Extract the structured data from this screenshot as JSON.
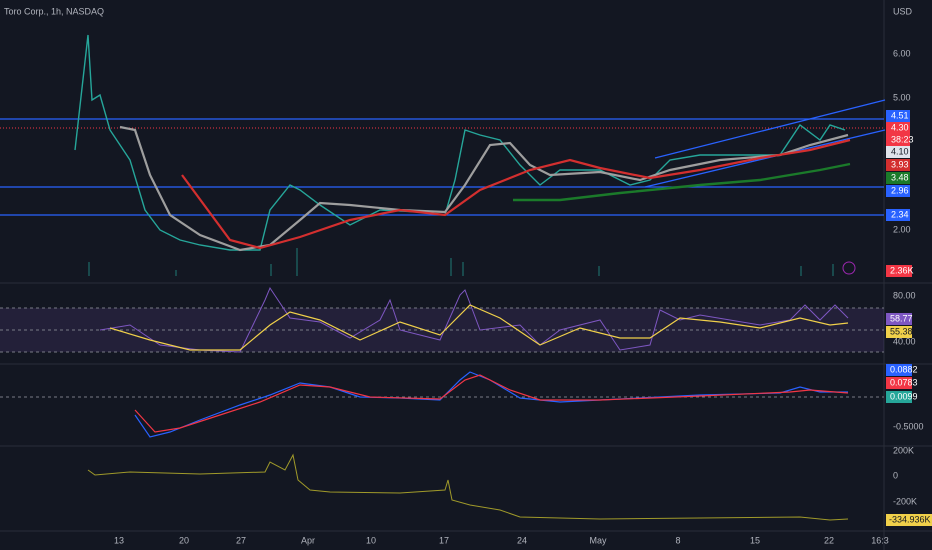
{
  "header": {
    "title": "Toro Corp., 1h, NASDAQ"
  },
  "price_axis": {
    "unit": "USD",
    "ticks": [
      "6.00",
      "5.00",
      "2.00"
    ],
    "labels": [
      "4.51",
      "4.30",
      "38:23",
      "4.10",
      "3.93",
      "3.48",
      "2.96",
      "2.34",
      "2.36K"
    ]
  },
  "rsi_axis": {
    "ticks": [
      "80.00",
      "40.00"
    ],
    "labels": [
      "58.77",
      "55.38"
    ]
  },
  "macd_axis": {
    "ticks": [
      "-0.5000"
    ],
    "labels": [
      "0.0882",
      "0.0783",
      "0.0099"
    ]
  },
  "obv_axis": {
    "ticks": [
      "200K",
      "0",
      "-200K"
    ],
    "labels": [
      "-334.936K"
    ]
  },
  "time_axis": [
    "13",
    "20",
    "27",
    "Apr",
    "10",
    "17",
    "24",
    "May",
    "8",
    "15",
    "22",
    "16:3"
  ]
}
